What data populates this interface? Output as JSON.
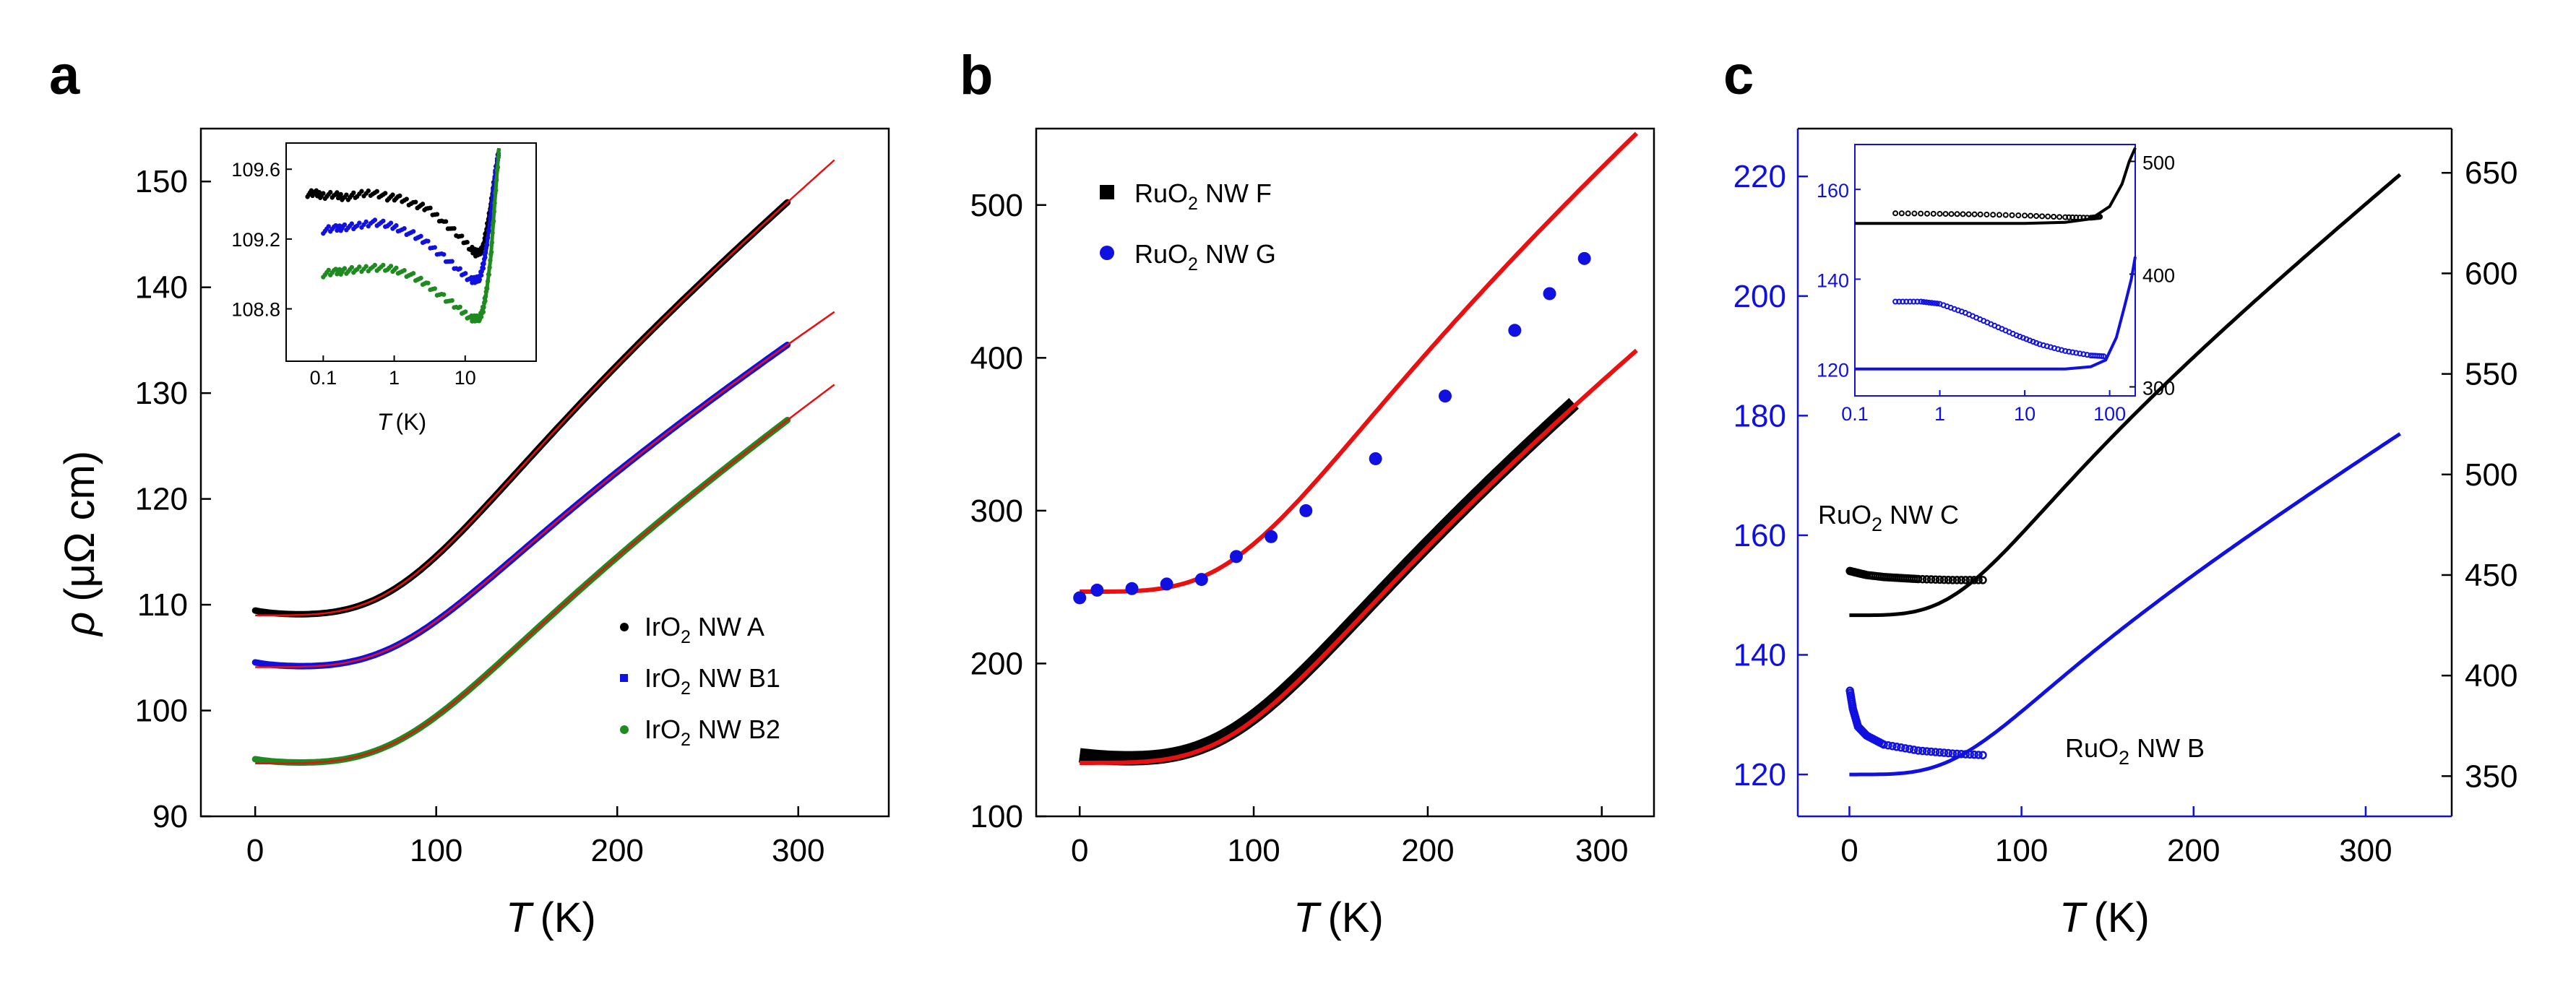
{
  "colors": {
    "black": "#000000",
    "blue": "#1010e0",
    "green": "#1f8a1f",
    "red": "#e81010"
  },
  "panels": {
    "a": {
      "letter": "a",
      "ylabel_sym": "ρ",
      "ylabel_unit": "(μΩ cm)",
      "xlabel_sym": "T",
      "xlabel_unit": "(K)"
    },
    "b": {
      "letter": "b",
      "xlabel_sym": "T",
      "xlabel_unit": "(K)"
    },
    "c": {
      "letter": "c",
      "xlabel_sym": "T",
      "xlabel_unit": "(K)"
    }
  },
  "inset_a": {
    "xlabel_sym": "T",
    "xlabel_unit": "(K)"
  },
  "chart_data": [
    {
      "id": "a",
      "type": "line",
      "title": "",
      "xlabel": "T (K)",
      "ylabel": "ρ (μΩ cm)",
      "xlim": [
        -30,
        350
      ],
      "ylim": [
        90,
        155
      ],
      "xticks": [
        "0",
        "100",
        "200",
        "300"
      ],
      "yticks": [
        "90",
        "100",
        "110",
        "120",
        "130",
        "140",
        "150"
      ],
      "series": [
        {
          "name": "IrO2 NW A",
          "legend": {
            "pre": "IrO",
            "sub": "2",
            "post": " NW A"
          },
          "color": "#000000",
          "marker": "circle",
          "rho0": 109.0,
          "slope": 0.1407,
          "theta": 115,
          "tmax": 295,
          "dip": 0.45,
          "tmin": 22
        },
        {
          "name": "IrO2 NW B1",
          "legend": {
            "pre": "IrO",
            "sub": "2",
            "post": " NW B1"
          },
          "color": "#1010e0",
          "marker": "square",
          "rho0": 104.1,
          "slope": 0.1098,
          "theta": 115,
          "tmax": 295,
          "dip": 0.45,
          "tmin": 22
        },
        {
          "name": "IrO2 NW B2",
          "legend": {
            "pre": "IrO",
            "sub": "2",
            "post": " NW B2"
          },
          "color": "#1f8a1f",
          "marker": "circle",
          "rho0": 95.0,
          "slope": 0.1175,
          "theta": 118,
          "tmax": 295,
          "dip": 0.4,
          "tmin": 22
        }
      ],
      "fit": {
        "color": "#e81010",
        "tmax": 320
      }
    },
    {
      "id": "a-inset",
      "type": "scatter",
      "xscale": "log",
      "xlabel": "T (K)",
      "xlim": [
        0.03,
        100
      ],
      "ylim": [
        108.5,
        109.75
      ],
      "xticks": [
        "0.1",
        "1",
        "10"
      ],
      "yticks": [
        "108.8",
        "109.2",
        "109.6"
      ],
      "series": [
        {
          "name": "IrO2 NW A",
          "color": "#000000",
          "points": [
            [
              0.06,
              109.46
            ],
            [
              0.08,
              109.46
            ],
            [
              0.1,
              109.45
            ],
            [
              0.15,
              109.45
            ],
            [
              0.2,
              109.44
            ],
            [
              0.3,
              109.45
            ],
            [
              0.5,
              109.47
            ],
            [
              0.8,
              109.44
            ],
            [
              1.2,
              109.43
            ],
            [
              2,
              109.4
            ],
            [
              3,
              109.37
            ],
            [
              5,
              109.3
            ],
            [
              8,
              109.22
            ],
            [
              12,
              109.15
            ],
            [
              14,
              109.12
            ],
            [
              16,
              109.12
            ],
            [
              18,
              109.16
            ],
            [
              20,
              109.25
            ],
            [
              23,
              109.4
            ],
            [
              26,
              109.55
            ],
            [
              30,
              109.72
            ]
          ]
        },
        {
          "name": "IrO2 NW B1",
          "color": "#1010e0",
          "points": [
            [
              0.1,
              109.25
            ],
            [
              0.15,
              109.26
            ],
            [
              0.2,
              109.27
            ],
            [
              0.3,
              109.27
            ],
            [
              0.5,
              109.3
            ],
            [
              0.8,
              109.28
            ],
            [
              1.2,
              109.26
            ],
            [
              2,
              109.22
            ],
            [
              3,
              109.17
            ],
            [
              5,
              109.1
            ],
            [
              8,
              109.02
            ],
            [
              12,
              108.97
            ],
            [
              14,
              108.96
            ],
            [
              16,
              108.98
            ],
            [
              18,
              109.05
            ],
            [
              20,
              109.15
            ],
            [
              23,
              109.35
            ],
            [
              26,
              109.55
            ],
            [
              30,
              109.72
            ]
          ]
        },
        {
          "name": "IrO2 NW B2",
          "color": "#1f8a1f",
          "points": [
            [
              0.1,
              109.0
            ],
            [
              0.15,
              109.01
            ],
            [
              0.2,
              109.02
            ],
            [
              0.3,
              109.02
            ],
            [
              0.5,
              109.04
            ],
            [
              0.8,
              109.03
            ],
            [
              1.2,
              109.02
            ],
            [
              2,
              108.98
            ],
            [
              3,
              108.93
            ],
            [
              5,
              108.87
            ],
            [
              8,
              108.8
            ],
            [
              12,
              108.75
            ],
            [
              14,
              108.74
            ],
            [
              16,
              108.75
            ],
            [
              18,
              108.8
            ],
            [
              20,
              108.9
            ],
            [
              23,
              109.1
            ],
            [
              26,
              109.4
            ],
            [
              30,
              109.72
            ]
          ]
        }
      ]
    },
    {
      "id": "b",
      "type": "line",
      "title": "",
      "xlabel": "T (K)",
      "ylabel": "",
      "xlim": [
        -25,
        330
      ],
      "ylim": [
        100,
        550
      ],
      "xticks": [
        "0",
        "100",
        "200",
        "300"
      ],
      "yticks": [
        "100",
        "200",
        "300",
        "400",
        "500"
      ],
      "series": [
        {
          "name": "RuO2 NW F",
          "legend": {
            "pre": "RuO",
            "sub": "2",
            "post": " NW F"
          },
          "color": "#000000",
          "marker": "square",
          "rho0": 135,
          "slope": 0.9,
          "theta": 130,
          "tmax": 285,
          "dip": 3
        },
        {
          "name": "RuO2 NW G",
          "legend": {
            "pre": "RuO",
            "sub": "2",
            "post": " NW G"
          },
          "color": "#1010e0",
          "marker": "circle",
          "points": [
            [
              0,
              243
            ],
            [
              10,
              248
            ],
            [
              30,
              249
            ],
            [
              50,
              252
            ],
            [
              70,
              255
            ],
            [
              90,
              270
            ],
            [
              110,
              283
            ],
            [
              130,
              300
            ],
            [
              170,
              334
            ],
            [
              210,
              375
            ],
            [
              250,
              418
            ],
            [
              270,
              442
            ],
            [
              290,
              465
            ]
          ]
        }
      ],
      "fits": [
        {
          "color": "#e81010",
          "rho0": 135,
          "slope": 0.9,
          "theta": 130,
          "tmax": 320
        },
        {
          "color": "#e81010",
          "rho0": 247,
          "slope": 1.0,
          "theta": 130,
          "tmax": 320
        }
      ]
    },
    {
      "id": "c",
      "type": "line",
      "title": "",
      "xlabel": "T (K)",
      "ylabel": "",
      "xlim": [
        -30,
        350
      ],
      "ylim_left": [
        113,
        228
      ],
      "ylim_right": [
        330,
        672
      ],
      "xticks": [
        "0",
        "100",
        "200",
        "300"
      ],
      "yticks_left": [
        "120",
        "140",
        "160",
        "180",
        "200",
        "220"
      ],
      "yticks_right": [
        "350",
        "400",
        "450",
        "500",
        "550",
        "600",
        "650"
      ],
      "series": [
        {
          "name": "RuO2 NW C",
          "label": {
            "pre": "RuO",
            "sub": "2",
            "post": " NW C"
          },
          "axis": "right",
          "color": "#000000",
          "rho0": 430,
          "slope": 0.7,
          "theta": 90,
          "tmax": 320,
          "low_t": [
            [
              0.3,
              452
            ],
            [
              5,
              451
            ],
            [
              10,
              450
            ],
            [
              20,
              449
            ],
            [
              30,
              448.5
            ],
            [
              40,
              448
            ],
            [
              60,
              447.5
            ],
            [
              80,
              447.5
            ]
          ]
        },
        {
          "name": "RuO2 NW B",
          "label": {
            "pre": "RuO",
            "sub": "2",
            "post": " NW B"
          },
          "axis": "left",
          "color": "#1010e0",
          "rho0": 120,
          "slope": 0.182,
          "theta": 90,
          "tmax": 320,
          "low_t": [
            [
              0.3,
              134
            ],
            [
              2,
              131
            ],
            [
              5,
              128
            ],
            [
              10,
              126.5
            ],
            [
              20,
              125
            ],
            [
              40,
              124
            ],
            [
              60,
              123.5
            ],
            [
              80,
              123.2
            ]
          ]
        }
      ]
    },
    {
      "id": "c-inset",
      "type": "line",
      "xscale": "log",
      "xlim": [
        0.1,
        200
      ],
      "ylim_left": [
        114,
        170
      ],
      "ylim_right": [
        292,
        515
      ],
      "xticks": [
        "0.1",
        "1",
        "10",
        "100"
      ],
      "yticks_left": [
        "120",
        "140",
        "160"
      ],
      "yticks_right": [
        "300",
        "400",
        "500"
      ],
      "series": [
        {
          "name": "RuO2 NW C",
          "axis": "right",
          "color": "#000000",
          "points": [
            [
              0.3,
              454
            ],
            [
              1,
              453.5
            ],
            [
              3,
              453
            ],
            [
              10,
              452
            ],
            [
              30,
              450.5
            ],
            [
              60,
              450
            ],
            [
              80,
              451
            ]
          ],
          "fit": [
            [
              0.1,
              445
            ],
            [
              10,
              445
            ],
            [
              30,
              446
            ],
            [
              60,
              449
            ],
            [
              100,
              460
            ],
            [
              140,
              480
            ],
            [
              170,
              500
            ],
            [
              200,
              512
            ]
          ]
        },
        {
          "name": "RuO2 NW B",
          "axis": "left",
          "color": "#1010e0",
          "points": [
            [
              0.3,
              135
            ],
            [
              0.6,
              135
            ],
            [
              1,
              134.5
            ],
            [
              2,
              132.5
            ],
            [
              4,
              130
            ],
            [
              8,
              127.5
            ],
            [
              15,
              125.5
            ],
            [
              30,
              124
            ],
            [
              60,
              123
            ],
            [
              90,
              122.8
            ]
          ],
          "fit": [
            [
              0.1,
              120
            ],
            [
              30,
              120
            ],
            [
              60,
              120.5
            ],
            [
              90,
              122
            ],
            [
              120,
              127
            ],
            [
              150,
              134
            ],
            [
              180,
              140
            ],
            [
              200,
              145
            ]
          ]
        }
      ]
    }
  ]
}
